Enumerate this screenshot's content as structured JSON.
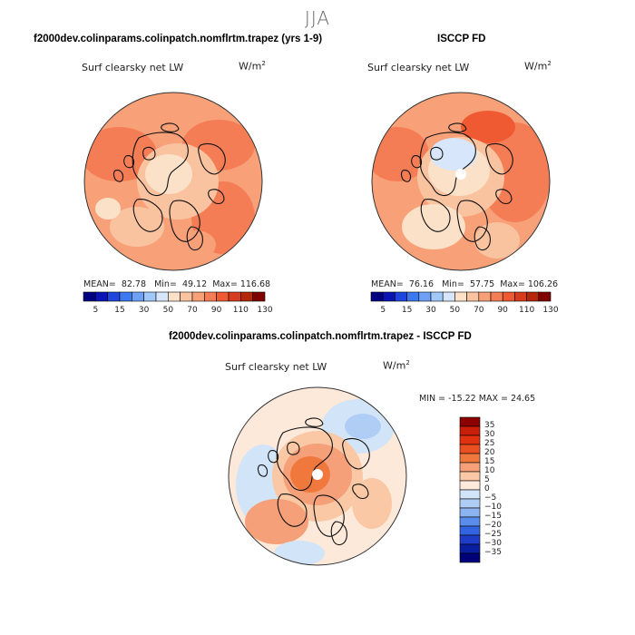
{
  "figure_title": "JJA",
  "panels": [
    {
      "title": "f2000dev.colinparams.colinpatch.nomflrtm.trapez (yrs 1-9)",
      "variable": "Surf clearsky net LW",
      "units": "W/m",
      "units_sup": "2",
      "mean_label": "MEAN=",
      "mean": "82.78",
      "min_label": "Min=",
      "min": "49.12",
      "max_label": "Max=",
      "max": "116.68"
    },
    {
      "title": "ISCCP FD",
      "variable": "Surf clearsky net LW",
      "units": "W/m",
      "units_sup": "2",
      "mean_label": "MEAN=",
      "mean": "76.16",
      "min_label": "Min=",
      "min": "57.75",
      "max_label": "Max=",
      "max": "106.26"
    }
  ],
  "diff_panel": {
    "title": "f2000dev.colinparams.colinpatch.nomflrtm.trapez - ISCCP FD",
    "variable": "Surf clearsky net LW",
    "units": "W/m",
    "units_sup": "2",
    "minmax_label": "MIN = -15.22 MAX =  24.65"
  },
  "colorbar_top": {
    "ticks": [
      "5",
      "15",
      "30",
      "50",
      "70",
      "90",
      "110",
      "130"
    ],
    "colors": [
      "#000080",
      "#0a14b4",
      "#1e46dc",
      "#3c78f0",
      "#6ea0f5",
      "#a0c8f8",
      "#d7e6fa",
      "#fbe1c8",
      "#fac3a0",
      "#f8a078",
      "#f57d55",
      "#f05a32",
      "#d73c1e",
      "#b4280a",
      "#800000"
    ]
  },
  "colorbar_diff": {
    "ticks": [
      "35",
      "30",
      "25",
      "20",
      "15",
      "10",
      "5",
      "0",
      "−5",
      "−10",
      "−15",
      "−20",
      "−25",
      "−30",
      "−35"
    ],
    "colors": [
      "#8c0000",
      "#c81e0a",
      "#e1320f",
      "#eb5023",
      "#f0783c",
      "#f5a078",
      "#fac8a5",
      "#fde9d9",
      "#d2e4f8",
      "#afcdf5",
      "#8cb4f0",
      "#5a8ceb",
      "#3264e1",
      "#1e3cc8",
      "#0a1ea0",
      "#000078"
    ]
  },
  "chart_data": [
    {
      "type": "heatmap",
      "title": "f2000dev.colinparams.colinpatch.nomflrtm.trapez (yrs 1-9)",
      "variable": "Surf clearsky net LW",
      "units": "W/m^2",
      "projection": "north polar stereographic",
      "mean": 82.78,
      "min": 49.12,
      "max": 116.68,
      "levels": [
        5,
        15,
        30,
        50,
        70,
        90,
        110,
        130
      ]
    },
    {
      "type": "heatmap",
      "title": "ISCCP FD",
      "variable": "Surf clearsky net LW",
      "units": "W/m^2",
      "projection": "north polar stereographic",
      "mean": 76.16,
      "min": 57.75,
      "max": 106.26,
      "levels": [
        5,
        15,
        30,
        50,
        70,
        90,
        110,
        130
      ]
    },
    {
      "type": "heatmap",
      "title": "f2000dev.colinparams.colinpatch.nomflrtm.trapez - ISCCP FD",
      "variable": "Surf clearsky net LW",
      "units": "W/m^2",
      "projection": "north polar stereographic",
      "min": -15.22,
      "max": 24.65,
      "levels": [
        -35,
        -30,
        -25,
        -20,
        -15,
        -10,
        -5,
        0,
        5,
        10,
        15,
        20,
        25,
        30,
        35
      ]
    }
  ]
}
